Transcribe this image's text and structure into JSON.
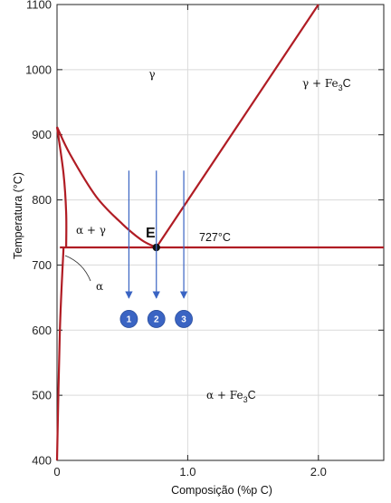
{
  "chart_data": {
    "type": "diagram",
    "xlabel": "Composição (%p C)",
    "ylabel": "Temperatura (°C)",
    "xlim": [
      0,
      2.5
    ],
    "ylim": [
      400,
      1100
    ],
    "x_ticks": [
      "0",
      "1.0",
      "2.0"
    ],
    "x_tick_values": [
      0,
      1.0,
      2.0
    ],
    "y_ticks": [
      "400",
      "500",
      "600",
      "700",
      "800",
      "900",
      "1000",
      "1100"
    ],
    "y_tick_values": [
      400,
      500,
      600,
      700,
      800,
      900,
      1000,
      1100
    ],
    "line_color": "#b01c24",
    "marker_color": "#3a64c3",
    "regions": {
      "gamma": "γ",
      "gamma_fe3c": "γ + Fe",
      "alpha_gamma": "α + γ",
      "alpha": "α",
      "alpha_fe3c": "α + Fe",
      "fe3c_sub": "3",
      "fe3c_c": "C"
    },
    "eutectoid": {
      "label": "E",
      "temperature_label": "727°C",
      "x": 0.76,
      "y": 727
    },
    "boundaries": {
      "a3": [
        [
          0,
          912
        ],
        [
          0.1,
          870
        ],
        [
          0.3,
          805
        ],
        [
          0.5,
          763
        ],
        [
          0.65,
          738
        ],
        [
          0.76,
          727
        ]
      ],
      "acm": [
        [
          0.76,
          727
        ],
        [
          2.0,
          1100
        ]
      ],
      "eutectoid_line": [
        [
          0.022,
          727
        ],
        [
          2.5,
          727
        ]
      ],
      "alpha_solvus_upper": [
        [
          0,
          912
        ],
        [
          0.05,
          840
        ],
        [
          0.07,
          780
        ],
        [
          0.07,
          727
        ]
      ],
      "alpha_solvus_lower": [
        [
          0,
          400
        ],
        [
          0.022,
          600
        ],
        [
          0.05,
          727
        ]
      ]
    },
    "cooling_paths": [
      {
        "id": "1",
        "x": 0.55,
        "y_start": 845,
        "y_end": 645
      },
      {
        "id": "2",
        "x": 0.76,
        "y_start": 845,
        "y_end": 645
      },
      {
        "id": "3",
        "x": 0.97,
        "y_start": 845,
        "y_end": 645
      }
    ]
  }
}
